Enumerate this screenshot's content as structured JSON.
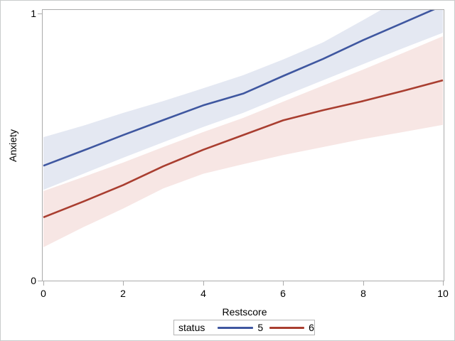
{
  "chart_data": {
    "type": "line",
    "title": "",
    "xlabel": "Restscore",
    "ylabel": "Anxiety",
    "x_ticks": [
      0,
      2,
      4,
      6,
      8,
      10
    ],
    "y_ticks": [
      0,
      1
    ],
    "xlim": [
      0,
      10
    ],
    "ylim": [
      0,
      1
    ],
    "grid": "off",
    "legend": {
      "title": "status",
      "position": "bottom",
      "entries": [
        {
          "label": "5",
          "color": "#3f57a0"
        },
        {
          "label": "6",
          "color": "#a93e30"
        }
      ]
    },
    "x": [
      0,
      1,
      2,
      3,
      4,
      5,
      6,
      7,
      8,
      9,
      10
    ],
    "series": [
      {
        "name": "5",
        "color": "#3f57a0",
        "band_color": "#e4e8f2",
        "values": [
          0.43,
          0.487,
          0.545,
          0.601,
          0.656,
          0.7,
          0.766,
          0.83,
          0.9,
          0.965,
          1.03
        ],
        "band_upper": [
          0.537,
          0.58,
          0.628,
          0.672,
          0.72,
          0.769,
          0.828,
          0.892,
          0.975,
          1.06,
          1.14
        ],
        "band_lower": [
          0.34,
          0.4,
          0.46,
          0.518,
          0.575,
          0.628,
          0.69,
          0.75,
          0.81,
          0.87,
          0.928
        ]
      },
      {
        "name": "6",
        "color": "#a93e30",
        "band_color": "#f7e6e4",
        "values": [
          0.237,
          0.296,
          0.358,
          0.428,
          0.49,
          0.545,
          0.6,
          0.638,
          0.672,
          0.71,
          0.75
        ],
        "band_upper": [
          0.335,
          0.388,
          0.442,
          0.5,
          0.556,
          0.609,
          0.67,
          0.73,
          0.79,
          0.852,
          0.915
        ],
        "band_lower": [
          0.125,
          0.2,
          0.27,
          0.345,
          0.4,
          0.436,
          0.47,
          0.5,
          0.53,
          0.556,
          0.583
        ]
      }
    ],
    "colors": {
      "frame": "#ababab",
      "tick": "#ababab",
      "text": "#000000",
      "background": "#ffffff",
      "image_border": "#c9cccc"
    }
  }
}
